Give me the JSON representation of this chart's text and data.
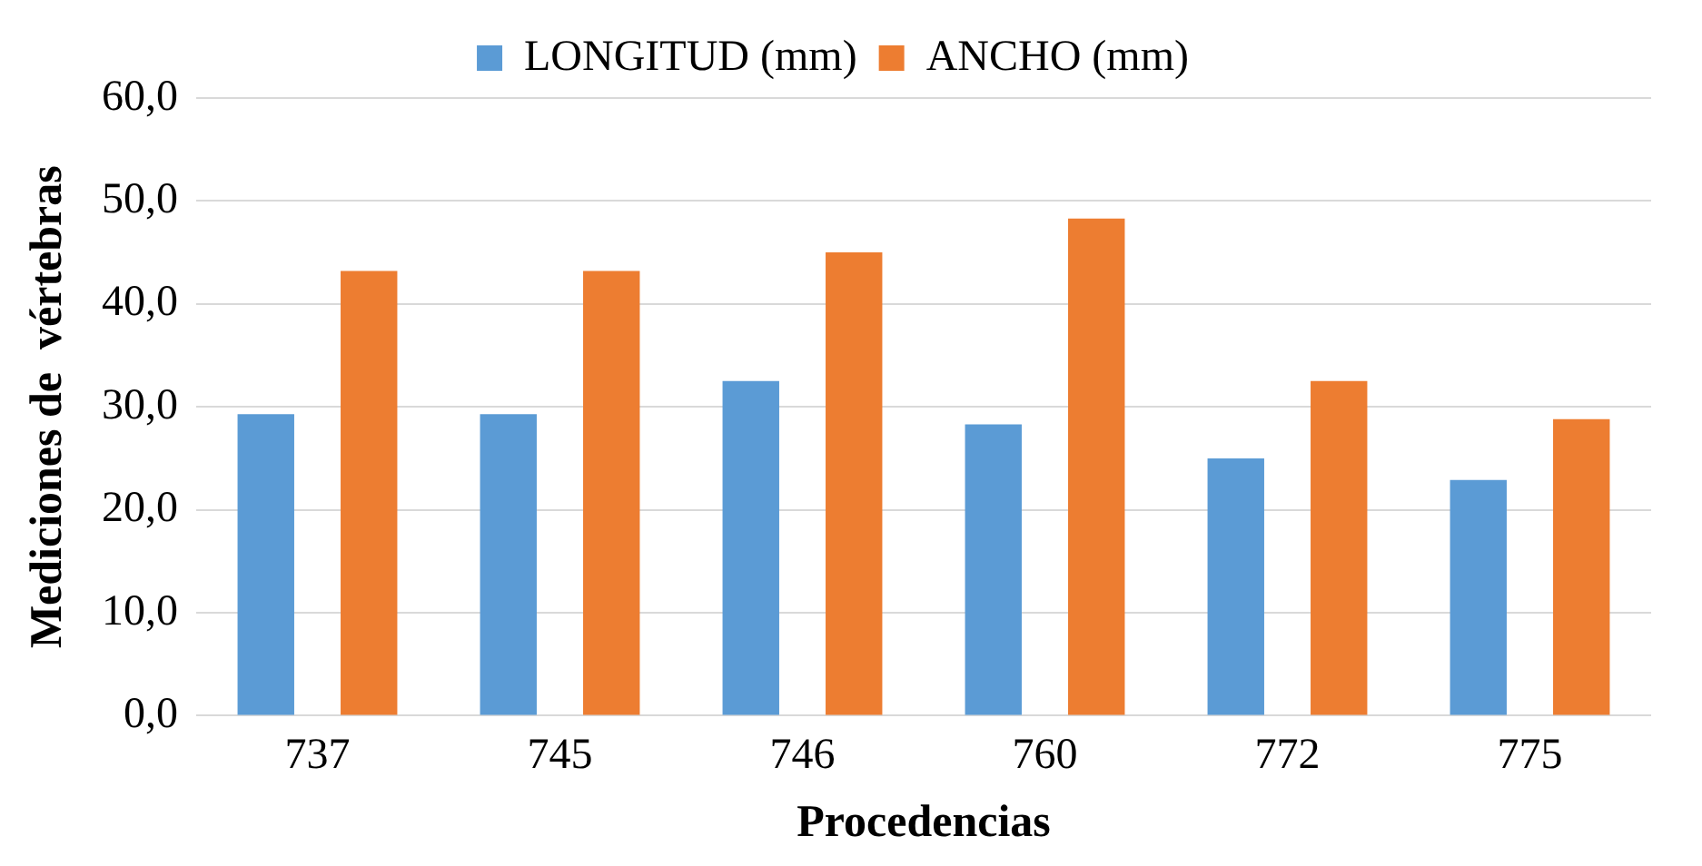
{
  "chart_data": {
    "type": "bar",
    "xlabel": "Procedencias",
    "ylabel": "Mediciones de  vértebras",
    "categories": [
      "737",
      "745",
      "746",
      "760",
      "772",
      "775"
    ],
    "series": [
      {
        "name": "LONGITUD (mm)",
        "color": "#5b9bd5",
        "values": [
          29.3,
          29.3,
          32.5,
          28.3,
          25.0,
          22.9
        ]
      },
      {
        "name": "ANCHO (mm)",
        "color": "#ed7d31",
        "values": [
          43.2,
          43.2,
          45.0,
          48.3,
          32.5,
          28.8
        ]
      }
    ],
    "ylim": [
      0,
      60
    ],
    "yticks": [
      {
        "value": 0,
        "label": "0,0"
      },
      {
        "value": 10,
        "label": "10,0"
      },
      {
        "value": 20,
        "label": "20,0"
      },
      {
        "value": 30,
        "label": "30,0"
      },
      {
        "value": 40,
        "label": "40,0"
      },
      {
        "value": 50,
        "label": "50,0"
      },
      {
        "value": 60,
        "label": "60,0"
      }
    ],
    "grid": "y",
    "legend": "top"
  }
}
